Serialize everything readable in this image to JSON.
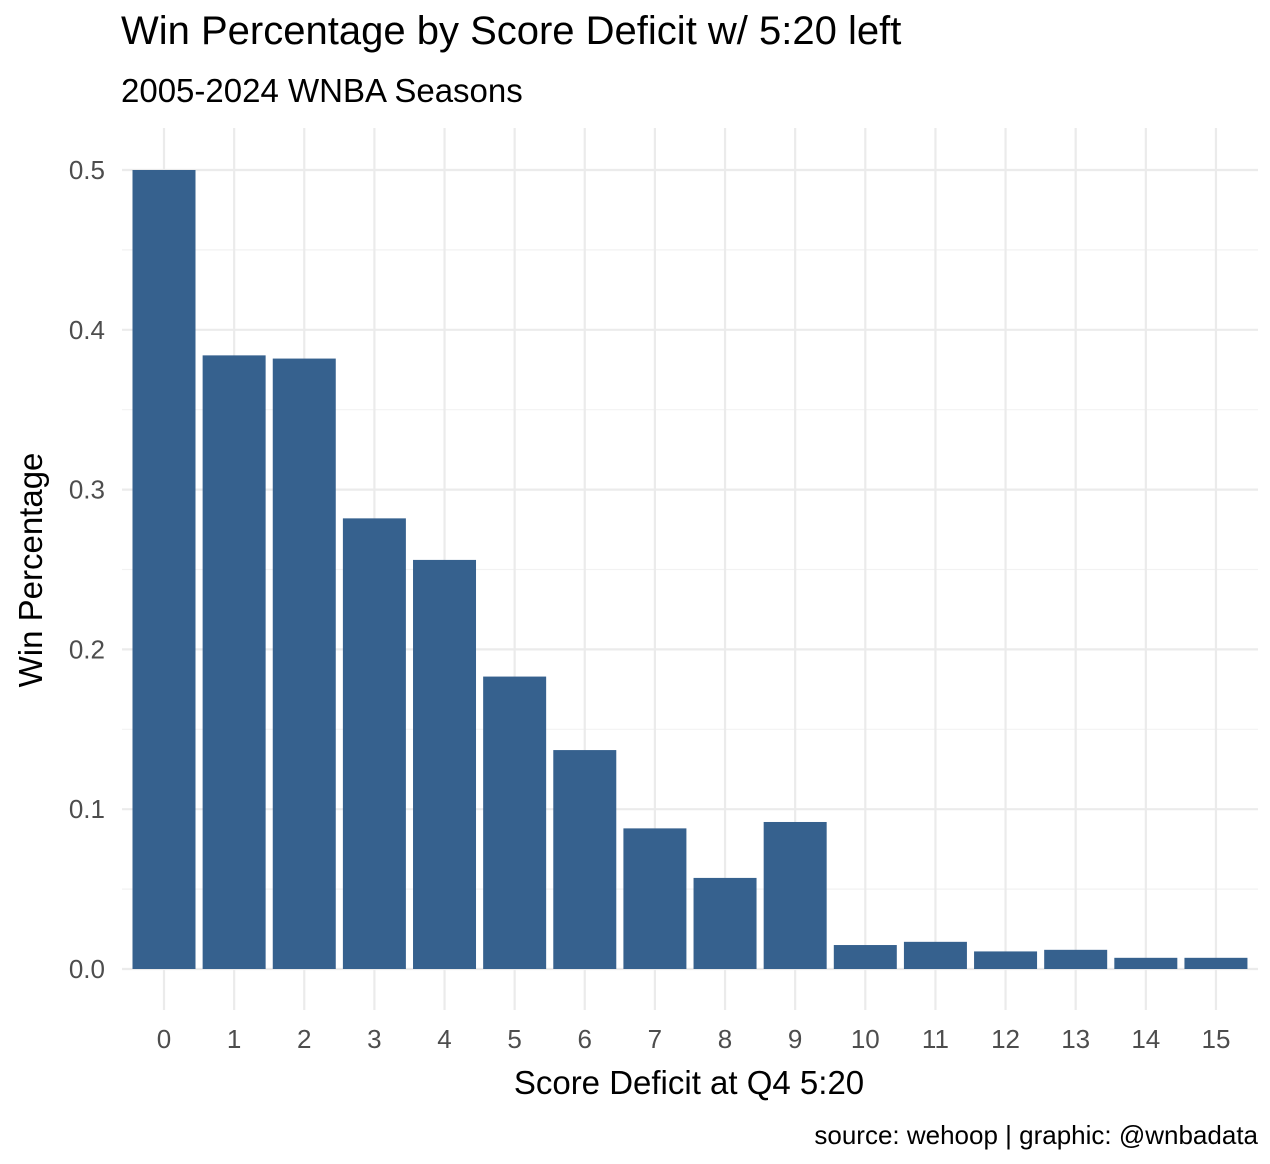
{
  "chart_data": {
    "type": "bar",
    "title": "Win Percentage by Score Deficit w/ 5:20 left",
    "subtitle": "2005-2024 WNBA Seasons",
    "xlabel": "Score Deficit at Q4 5:20",
    "ylabel": "Win Percentage",
    "caption": "source: wehoop | graphic: @wnbadata",
    "categories": [
      "0",
      "1",
      "2",
      "3",
      "4",
      "5",
      "6",
      "7",
      "8",
      "9",
      "10",
      "11",
      "12",
      "13",
      "14",
      "15"
    ],
    "values": [
      0.5,
      0.384,
      0.382,
      0.282,
      0.256,
      0.183,
      0.137,
      0.088,
      0.057,
      0.092,
      0.015,
      0.017,
      0.011,
      0.012,
      0.007,
      0.007
    ],
    "ylim": [
      0,
      0.5
    ],
    "yticks": [
      "0.0",
      "0.1",
      "0.2",
      "0.3",
      "0.4",
      "0.5"
    ],
    "bar_color": "#36618e",
    "grid": true,
    "legend": "none"
  }
}
